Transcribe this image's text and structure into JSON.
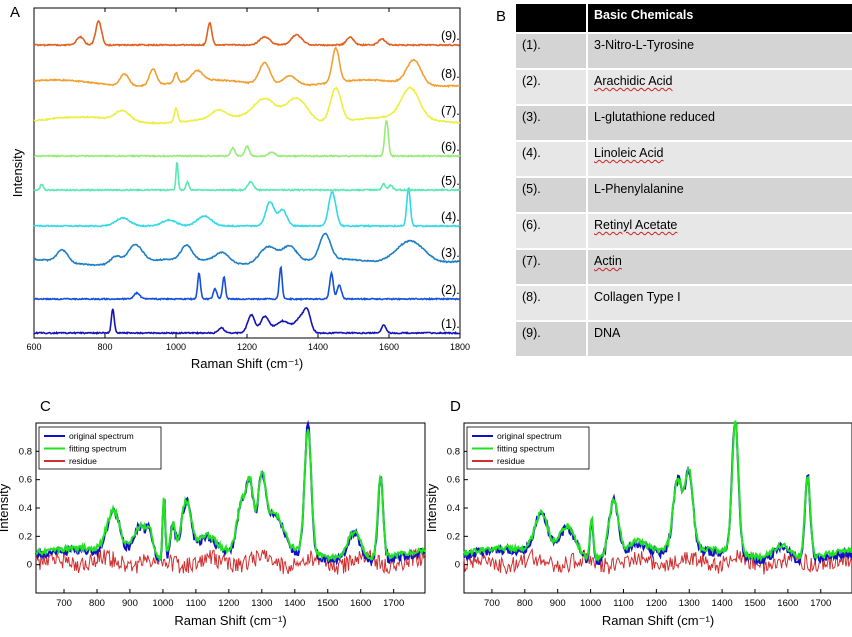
{
  "panels": {
    "a": "A",
    "b": "B",
    "c": "C",
    "d": "D"
  },
  "chart_data": [
    {
      "type": "line",
      "panel": "A",
      "xlabel": "Raman Shift (cm⁻¹)",
      "ylabel": "Intensity",
      "xlim": [
        600,
        1800
      ],
      "xticks": [
        600,
        800,
        1000,
        1200,
        1400,
        1600,
        1800
      ],
      "series": [
        {
          "name": "(1).",
          "color": "#1414b4",
          "peaks": [
            [
              822,
              24,
              4
            ],
            [
              1128,
              5,
              8
            ],
            [
              1212,
              18,
              10
            ],
            [
              1250,
              16,
              12
            ],
            [
              1300,
              12,
              20
            ],
            [
              1350,
              14,
              15
            ],
            [
              1370,
              18,
              10
            ],
            [
              1585,
              8,
              6
            ]
          ]
        },
        {
          "name": "(2).",
          "color": "#1550d8",
          "peaks": [
            [
              890,
              6,
              8
            ],
            [
              1065,
              26,
              4
            ],
            [
              1110,
              10,
              5
            ],
            [
              1135,
              22,
              4
            ],
            [
              1295,
              32,
              4
            ],
            [
              1438,
              26,
              5
            ],
            [
              1460,
              14,
              6
            ]
          ]
        },
        {
          "name": "(3).",
          "color": "#1e7ec4",
          "peaks": [
            [
              680,
              12,
              15
            ],
            [
              830,
              8,
              15
            ],
            [
              885,
              18,
              20
            ],
            [
              1030,
              14,
              15
            ],
            [
              1130,
              10,
              20
            ],
            [
              1260,
              18,
              25
            ],
            [
              1320,
              16,
              20
            ],
            [
              1420,
              26,
              15
            ],
            [
              1660,
              24,
              40
            ]
          ]
        },
        {
          "name": "(4).",
          "color": "#33d8e8",
          "peaks": [
            [
              850,
              8,
              20
            ],
            [
              980,
              6,
              20
            ],
            [
              1080,
              10,
              20
            ],
            [
              1265,
              24,
              12
            ],
            [
              1300,
              16,
              12
            ],
            [
              1440,
              34,
              10
            ],
            [
              1655,
              38,
              5
            ]
          ]
        },
        {
          "name": "(5).",
          "color": "#58e8b4",
          "peaks": [
            [
              622,
              6,
              4
            ],
            [
              1003,
              28,
              3
            ],
            [
              1032,
              8,
              4
            ],
            [
              1210,
              8,
              8
            ],
            [
              1585,
              6,
              5
            ],
            [
              1605,
              5,
              5
            ]
          ]
        },
        {
          "name": "(6).",
          "color": "#96ec7a",
          "peaks": [
            [
              1160,
              8,
              6
            ],
            [
              1200,
              10,
              6
            ],
            [
              1270,
              4,
              8
            ],
            [
              1593,
              36,
              5
            ]
          ]
        },
        {
          "name": "(7).",
          "color": "#eeee40",
          "peaks": [
            [
              850,
              10,
              20
            ],
            [
              1000,
              14,
              5
            ],
            [
              1120,
              8,
              20
            ],
            [
              1250,
              20,
              30
            ],
            [
              1340,
              24,
              30
            ],
            [
              1450,
              34,
              15
            ],
            [
              1660,
              30,
              25
            ]
          ]
        },
        {
          "name": "(8).",
          "color": "#f0a030",
          "peaks": [
            [
              855,
              12,
              12
            ],
            [
              935,
              16,
              10
            ],
            [
              1000,
              10,
              5
            ],
            [
              1060,
              10,
              15
            ],
            [
              1250,
              22,
              15
            ],
            [
              1320,
              10,
              20
            ],
            [
              1450,
              34,
              10
            ],
            [
              1670,
              24,
              20
            ]
          ]
        },
        {
          "name": "(9).",
          "color": "#e06020",
          "peaks": [
            [
              782,
              24,
              8
            ],
            [
              730,
              8,
              10
            ],
            [
              1095,
              22,
              6
            ],
            [
              1250,
              8,
              15
            ],
            [
              1340,
              10,
              15
            ],
            [
              1490,
              8,
              10
            ],
            [
              1580,
              6,
              10
            ]
          ]
        }
      ]
    },
    {
      "type": "line",
      "panel": "C",
      "xlabel": "Raman Shift (cm⁻¹)",
      "ylabel": "Intensity",
      "xlim": [
        615,
        1795
      ],
      "ylim": [
        -0.2,
        1.0
      ],
      "xticks": [
        700,
        800,
        900,
        1000,
        1100,
        1200,
        1300,
        1400,
        1500,
        1600,
        1700
      ],
      "yticks": [
        0,
        0.2,
        0.4,
        0.6,
        0.8
      ],
      "legend": "top-left",
      "series": [
        {
          "name": "original spectrum",
          "color": "#1010c8"
        },
        {
          "name": "fitting spectrum",
          "color": "#22e022"
        },
        {
          "name": "residue",
          "color": "#d03030"
        }
      ],
      "peaks": [
        [
          850,
          0.3,
          20
        ],
        [
          930,
          0.22,
          20
        ],
        [
          960,
          0.15,
          10
        ],
        [
          1003,
          0.45,
          4
        ],
        [
          1030,
          0.25,
          8
        ],
        [
          1070,
          0.4,
          15
        ],
        [
          1130,
          0.15,
          30
        ],
        [
          1240,
          0.35,
          15
        ],
        [
          1265,
          0.42,
          10
        ],
        [
          1300,
          0.48,
          12
        ],
        [
          1340,
          0.25,
          25
        ],
        [
          1440,
          0.92,
          10
        ],
        [
          1580,
          0.2,
          20
        ],
        [
          1660,
          0.58,
          8
        ]
      ]
    },
    {
      "type": "line",
      "panel": "D",
      "xlabel": "Raman Shift (cm⁻¹)",
      "ylabel": "Intensity",
      "xlim": [
        615,
        1795
      ],
      "ylim": [
        -0.2,
        1.0
      ],
      "xticks": [
        700,
        800,
        900,
        1000,
        1100,
        1200,
        1300,
        1400,
        1500,
        1600,
        1700
      ],
      "yticks": [
        0,
        0.2,
        0.4,
        0.6,
        0.8
      ],
      "legend": "top-left",
      "series": [
        {
          "name": "original spectrum",
          "color": "#1010c8"
        },
        {
          "name": "fitting spectrum",
          "color": "#22e022"
        },
        {
          "name": "residue",
          "color": "#d03030"
        }
      ],
      "peaks": [
        [
          850,
          0.28,
          20
        ],
        [
          930,
          0.22,
          25
        ],
        [
          1003,
          0.3,
          5
        ],
        [
          1070,
          0.42,
          15
        ],
        [
          1140,
          0.1,
          30
        ],
        [
          1265,
          0.5,
          14
        ],
        [
          1300,
          0.55,
          12
        ],
        [
          1440,
          0.95,
          10
        ],
        [
          1580,
          0.1,
          25
        ],
        [
          1660,
          0.6,
          8
        ]
      ]
    }
  ],
  "table": {
    "header": [
      "",
      "Basic Chemicals"
    ],
    "rows": [
      [
        "(1).",
        "3-Nitro-L-Tyrosine"
      ],
      [
        "(2).",
        "Arachidic Acid"
      ],
      [
        "(3).",
        "L-glutathione reduced"
      ],
      [
        "(4).",
        "Linoleic Acid"
      ],
      [
        "(5).",
        "L-Phenylalanine"
      ],
      [
        "(6).",
        "Retinyl Acetate"
      ],
      [
        "(7).",
        "Actin"
      ],
      [
        "(8).",
        "Collagen Type I"
      ],
      [
        "(9).",
        "DNA"
      ]
    ]
  }
}
